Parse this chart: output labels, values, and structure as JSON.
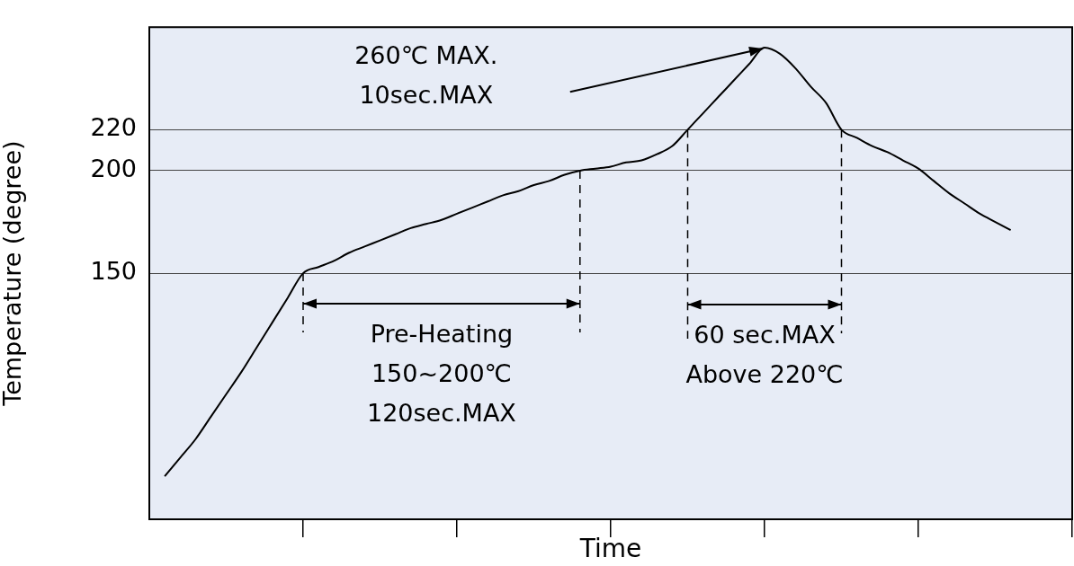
{
  "chart_data": {
    "type": "line",
    "xlabel": "Time",
    "ylabel": "Temperature (degree)",
    "categories": [
      null,
      null,
      null,
      null,
      null,
      null,
      null,
      null,
      null,
      null,
      null,
      null,
      null,
      null,
      null,
      null,
      null,
      null,
      null,
      null,
      null,
      null,
      null,
      null,
      null,
      null,
      null,
      null,
      null,
      null,
      null,
      null,
      null,
      null,
      null,
      null,
      null,
      null,
      null,
      null,
      null,
      null,
      null,
      null,
      null,
      null,
      null,
      null,
      null,
      null,
      null,
      null,
      null,
      null,
      null,
      null,
      null,
      null,
      null,
      null,
      null
    ],
    "series": [
      {
        "color": "#000000",
        "values": [
          null,
          51,
          60,
          69,
          80,
          91,
          102,
          114,
          126,
          138,
          150,
          153,
          156,
          160,
          163,
          166,
          169,
          172,
          174,
          176,
          179,
          182,
          185,
          188,
          190,
          193,
          195,
          198,
          200,
          201,
          202,
          204,
          205,
          208,
          212,
          220,
          228,
          236,
          244,
          252,
          260,
          257,
          250,
          241,
          233,
          220,
          216,
          212,
          209,
          205,
          201,
          195,
          189,
          184,
          179,
          175,
          171,
          null,
          null,
          null,
          null
        ]
      }
    ],
    "ylim": [
      30,
      270
    ],
    "yticks": [
      150,
      200,
      220
    ],
    "grid": "y",
    "legend": false,
    "tick_labels": "y",
    "marker": "none",
    "line_style": "solid",
    "annotations": [
      "260℃ MAX.\n10sec.MAX",
      "Pre-Heating\n150~200℃\n120sec.MAX",
      "60 sec.MAX\nAbove 220℃"
    ]
  }
}
